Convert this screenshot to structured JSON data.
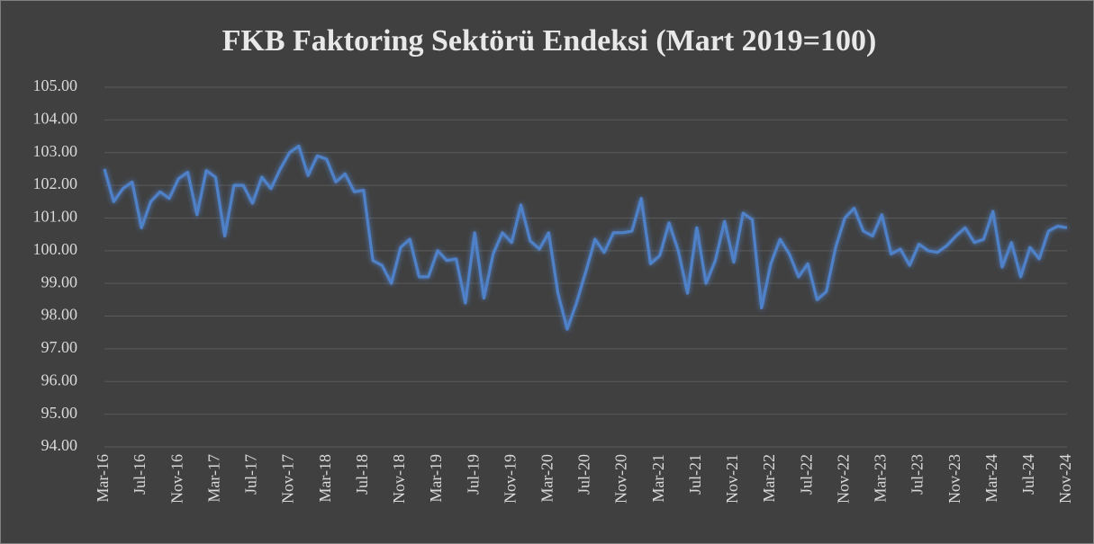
{
  "chart_data": {
    "type": "line",
    "title": "FKB Faktoring Sektörü Endeksi (Mart 2019=100)",
    "categories": [
      "Mar-16",
      null,
      null,
      null,
      "Jul-16",
      null,
      null,
      null,
      "Nov-16",
      null,
      null,
      null,
      "Mar-17",
      null,
      null,
      null,
      "Jul-17",
      null,
      null,
      null,
      "Nov-17",
      null,
      null,
      null,
      "Mar-18",
      null,
      null,
      null,
      "Jul-18",
      null,
      null,
      null,
      "Nov-18",
      null,
      null,
      null,
      "Mar-19",
      null,
      null,
      null,
      "Jul-19",
      null,
      null,
      null,
      "Nov-19",
      null,
      null,
      null,
      "Mar-20",
      null,
      null,
      null,
      "Jul-20",
      null,
      null,
      null,
      "Nov-20",
      null,
      null,
      null,
      "Mar-21",
      null,
      null,
      null,
      "Jul-21",
      null,
      null,
      null,
      "Nov-21",
      null,
      null,
      null,
      "Mar-22",
      null,
      null,
      null,
      "Jul-22",
      null,
      null,
      null,
      "Nov-22",
      null,
      null,
      null,
      "Mar-23",
      null,
      null,
      null,
      "Jul-23",
      null,
      null,
      null,
      "Nov-23",
      null,
      null,
      null,
      "Mar-24",
      null,
      null,
      null,
      "Jul-24",
      null,
      null,
      null,
      "Nov-24"
    ],
    "values": [
      102.5,
      101.5,
      101.9,
      102.1,
      100.7,
      101.5,
      101.8,
      101.6,
      102.2,
      102.4,
      101.1,
      102.45,
      102.25,
      100.45,
      102.0,
      102.0,
      101.45,
      102.25,
      101.9,
      102.5,
      103.0,
      103.2,
      102.3,
      102.9,
      102.8,
      102.1,
      102.35,
      101.8,
      101.85,
      99.7,
      99.55,
      99.0,
      100.1,
      100.35,
      99.2,
      99.2,
      100.0,
      99.7,
      99.75,
      98.4,
      100.55,
      98.55,
      99.9,
      100.55,
      100.25,
      101.4,
      100.3,
      100.05,
      100.55,
      98.7,
      97.6,
      98.4,
      99.35,
      100.35,
      99.95,
      100.55,
      100.55,
      100.6,
      101.6,
      99.6,
      99.85,
      100.85,
      100.0,
      98.7,
      100.7,
      99.0,
      99.7,
      100.9,
      99.65,
      101.15,
      100.95,
      98.25,
      99.6,
      100.35,
      99.9,
      99.2,
      99.6,
      98.5,
      98.75,
      100.1,
      101.0,
      101.3,
      100.6,
      100.45,
      101.1,
      99.9,
      100.05,
      99.55,
      100.2,
      100.0,
      99.95,
      100.15,
      100.45,
      100.7,
      100.25,
      100.35,
      101.2,
      99.5,
      100.25,
      99.2,
      100.1,
      99.75,
      100.6,
      100.75,
      100.7
    ],
    "color": "#4f81c9",
    "ylim": [
      94,
      105
    ],
    "yticks": [
      {
        "value": 94,
        "label": "94.00"
      },
      {
        "value": 95,
        "label": "95.00"
      },
      {
        "value": 96,
        "label": "96.00"
      },
      {
        "value": 97,
        "label": "97.00"
      },
      {
        "value": 98,
        "label": "98.00"
      },
      {
        "value": 99,
        "label": "99.00"
      },
      {
        "value": 100,
        "label": "100.00"
      },
      {
        "value": 101,
        "label": "101.00"
      },
      {
        "value": 102,
        "label": "102.00"
      },
      {
        "value": 103,
        "label": "103.00"
      },
      {
        "value": 104,
        "label": "104.00"
      },
      {
        "value": 105,
        "label": "105.00"
      }
    ],
    "grid": true
  }
}
